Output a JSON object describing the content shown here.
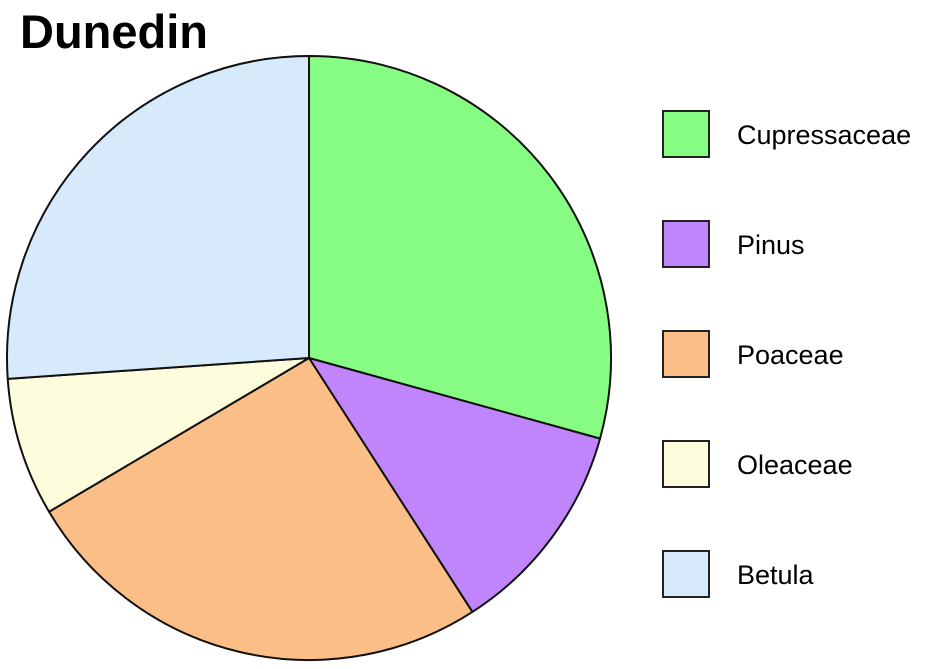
{
  "chart_data": {
    "type": "pie",
    "title": "Dunedin",
    "categories": [
      "Cupressaceae",
      "Pinus",
      "Poaceae",
      "Oleaceae",
      "Betula"
    ],
    "values": [
      29.3,
      11.6,
      25.6,
      7.4,
      26.1
    ],
    "colors": [
      "#86fc82",
      "#c185fb",
      "#fbbe86",
      "#fdfcdd",
      "#d6eafb"
    ],
    "start_angle_deg": 0,
    "direction": "clockwise",
    "legend_position": "right"
  }
}
